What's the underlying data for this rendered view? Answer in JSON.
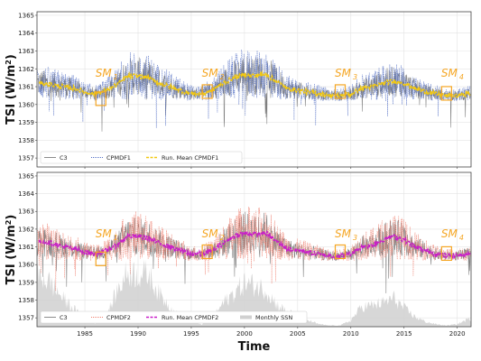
{
  "chart_data": [
    {
      "type": "line",
      "panel": "top",
      "ylabel_main": "TSI (W/m",
      "ylabel_sup": "2",
      "ylabel_close": ")",
      "xlim": [
        1980.5,
        2021.3
      ],
      "ylim": [
        1356.5,
        1365.2
      ],
      "yticks": [
        1357,
        1358,
        1359,
        1360,
        1361,
        1362,
        1363,
        1364,
        1365
      ],
      "series": [
        {
          "name": "C3",
          "color": "#7f7f7f",
          "style": "solid"
        },
        {
          "name": "CPMDF1",
          "color": "#5470c6",
          "style": "dotted"
        },
        {
          "name": "Run. Mean CPMDF1",
          "color": "#f2c811",
          "style": "dashed",
          "x": [
            1981,
            1982,
            1983,
            1984,
            1985,
            1986,
            1987,
            1988,
            1989,
            1990,
            1991,
            1992,
            1993,
            1994,
            1995,
            1996,
            1997,
            1998,
            1999,
            2000,
            2001,
            2002,
            2003,
            2004,
            2005,
            2006,
            2007,
            2008,
            2009,
            2010,
            2011,
            2012,
            2013,
            2014,
            2015,
            2016,
            2017,
            2018,
            2019,
            2020,
            2021
          ],
          "values": [
            1361.2,
            1361.1,
            1361.0,
            1360.9,
            1360.7,
            1360.6,
            1360.8,
            1361.1,
            1361.6,
            1361.6,
            1361.5,
            1361.2,
            1361.0,
            1360.8,
            1360.6,
            1360.6,
            1360.8,
            1361.2,
            1361.5,
            1361.7,
            1361.6,
            1361.7,
            1361.3,
            1360.9,
            1360.8,
            1360.7,
            1360.6,
            1360.5,
            1360.5,
            1360.6,
            1360.9,
            1361.0,
            1361.2,
            1361.3,
            1361.2,
            1360.9,
            1360.7,
            1360.6,
            1360.5,
            1360.5,
            1360.6
          ]
        }
      ],
      "minima": [
        {
          "label": "SM",
          "sub": "1",
          "x": 1986.5,
          "y": 1360.3
        },
        {
          "label": "SM",
          "sub": "2",
          "x": 1996.5,
          "y": 1360.7
        },
        {
          "label": "SM",
          "sub": "3",
          "x": 2009.0,
          "y": 1360.7
        },
        {
          "label": "SM",
          "sub": "4",
          "x": 2019.0,
          "y": 1360.6
        }
      ],
      "legend": {
        "position": "lower-left",
        "entries": [
          "C3",
          "CPMDF1",
          "Run. Mean CPMDF1"
        ]
      }
    },
    {
      "type": "line",
      "panel": "bottom",
      "ylabel_main": "TSI (W/m",
      "ylabel_sup": "2",
      "ylabel_close": ")",
      "xlabel": "Time",
      "xlim": [
        1980.5,
        2021.3
      ],
      "xticks": [
        1985,
        1990,
        1995,
        2000,
        2005,
        2010,
        2015,
        2020
      ],
      "ylim": [
        1356.5,
        1365.2
      ],
      "yticks": [
        1357,
        1358,
        1359,
        1360,
        1361,
        1362,
        1363,
        1364,
        1365
      ],
      "series": [
        {
          "name": "C3",
          "color": "#7f7f7f",
          "style": "solid"
        },
        {
          "name": "CPMDF2",
          "color": "#f08070",
          "style": "dotted"
        },
        {
          "name": "Run. Mean CPMDF2",
          "color": "#c81ec8",
          "style": "dashed",
          "x": [
            1981,
            1982,
            1983,
            1984,
            1985,
            1986,
            1987,
            1988,
            1989,
            1990,
            1991,
            1992,
            1993,
            1994,
            1995,
            1996,
            1997,
            1998,
            1999,
            2000,
            2001,
            2002,
            2003,
            2004,
            2005,
            2006,
            2007,
            2008,
            2009,
            2010,
            2011,
            2012,
            2013,
            2014,
            2015,
            2016,
            2017,
            2018,
            2019,
            2020,
            2021
          ],
          "values": [
            1361.3,
            1361.2,
            1361.0,
            1360.9,
            1360.7,
            1360.6,
            1360.8,
            1361.1,
            1361.6,
            1361.6,
            1361.5,
            1361.2,
            1361.0,
            1360.8,
            1360.6,
            1360.6,
            1360.8,
            1361.2,
            1361.6,
            1361.8,
            1361.7,
            1361.8,
            1361.3,
            1360.9,
            1360.8,
            1360.7,
            1360.6,
            1360.5,
            1360.5,
            1360.6,
            1361.0,
            1361.1,
            1361.4,
            1361.6,
            1361.4,
            1361.0,
            1360.8,
            1360.6,
            1360.5,
            1360.5,
            1360.6
          ]
        },
        {
          "name": "Monthly SSN",
          "color": "#c8c8c8",
          "style": "area",
          "x": [
            1981,
            1982,
            1983,
            1984,
            1985,
            1986,
            1987,
            1988,
            1989,
            1990,
            1991,
            1992,
            1993,
            1994,
            1995,
            1996,
            1997,
            1998,
            1999,
            2000,
            2001,
            2002,
            2003,
            2004,
            2005,
            2006,
            2007,
            2008,
            2009,
            2010,
            2011,
            2012,
            2013,
            2014,
            2015,
            2016,
            2017,
            2018,
            2019,
            2020,
            2021
          ],
          "values": [
            200,
            165,
            110,
            70,
            25,
            15,
            40,
            140,
            220,
            210,
            210,
            130,
            80,
            40,
            25,
            10,
            35,
            95,
            135,
            175,
            165,
            150,
            90,
            60,
            45,
            25,
            10,
            5,
            5,
            25,
            80,
            85,
            95,
            115,
            75,
            40,
            20,
            10,
            5,
            10,
            30
          ]
        }
      ],
      "minima": [
        {
          "label": "SM",
          "sub": "1",
          "x": 1986.5,
          "y": 1360.3
        },
        {
          "label": "SM",
          "sub": "2",
          "x": 1996.5,
          "y": 1360.7
        },
        {
          "label": "SM",
          "sub": "3",
          "x": 2009.0,
          "y": 1360.7
        },
        {
          "label": "SM",
          "sub": "4",
          "x": 2019.0,
          "y": 1360.6
        }
      ],
      "legend": {
        "position": "lower-left",
        "entries": [
          "C3",
          "CPMDF2",
          "Run. Mean CPMDF2",
          "Monthly SSN"
        ]
      }
    }
  ]
}
